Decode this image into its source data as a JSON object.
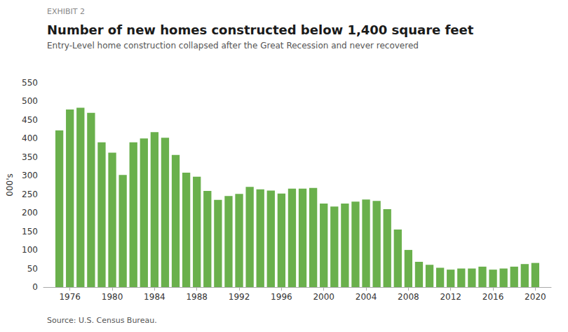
{
  "chart_data": {
    "type": "bar",
    "title": "Number of new homes constructed below 1,400 square feet",
    "subtitle": "Entry-Level home construction collapsed after the Great Recession and never recovered",
    "annotations": [
      "EXHIBIT 2"
    ],
    "source": "Source: U.S. Census Bureau.",
    "ylabel": "000's",
    "x": [
      1975,
      1976,
      1977,
      1978,
      1979,
      1980,
      1981,
      1982,
      1983,
      1984,
      1985,
      1986,
      1987,
      1988,
      1989,
      1990,
      1991,
      1992,
      1993,
      1994,
      1995,
      1996,
      1997,
      1998,
      1999,
      2000,
      2001,
      2002,
      2003,
      2004,
      2005,
      2006,
      2007,
      2008,
      2009,
      2010,
      2011,
      2012,
      2013,
      2014,
      2015,
      2016,
      2017,
      2018,
      2019,
      2020
    ],
    "values": [
      422,
      478,
      483,
      469,
      390,
      362,
      302,
      390,
      400,
      417,
      402,
      356,
      308,
      297,
      259,
      235,
      245,
      251,
      270,
      263,
      260,
      252,
      265,
      265,
      267,
      225,
      217,
      225,
      230,
      236,
      232,
      210,
      155,
      100,
      68,
      60,
      52,
      47,
      50,
      50,
      55,
      47,
      50,
      55,
      62,
      65
    ],
    "color": "#6ab04c",
    "xlim": [
      1973.5,
      2021.5
    ],
    "xticks": [
      1976,
      1980,
      1984,
      1988,
      1992,
      1996,
      2000,
      2004,
      2008,
      2012,
      2016,
      2020
    ],
    "ylim": [
      0,
      550
    ],
    "yticks": [
      0,
      50,
      100,
      150,
      200,
      250,
      300,
      350,
      400,
      450,
      500,
      550
    ],
    "grid": false
  }
}
